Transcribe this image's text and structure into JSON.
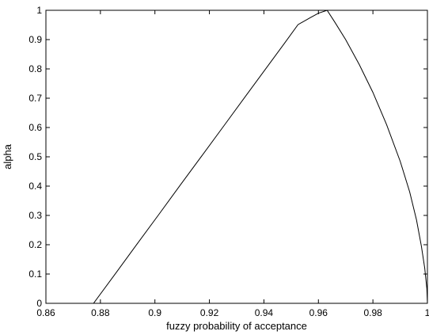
{
  "chart_data": {
    "type": "line",
    "title": "",
    "xlabel": "fuzzy probability of acceptance",
    "ylabel": "alpha",
    "xlim": [
      0.86,
      1.0
    ],
    "ylim": [
      0,
      1
    ],
    "grid": false,
    "xticks": [
      0.86,
      0.88,
      0.9,
      0.92,
      0.94,
      0.96,
      0.98,
      1
    ],
    "xtick_labels": [
      "0.86",
      "0.88",
      "0.9",
      "0.92",
      "0.94",
      "0.96",
      "0.98",
      "1"
    ],
    "yticks": [
      0,
      0.1,
      0.2,
      0.3,
      0.4,
      0.5,
      0.6,
      0.7,
      0.8,
      0.9,
      1
    ],
    "ytick_labels": [
      "0",
      "0.1",
      "0.2",
      "0.3",
      "0.4",
      "0.5",
      "0.6",
      "0.7",
      "0.8",
      "0.9",
      "1"
    ],
    "line_color": "#000000",
    "series": [
      {
        "x": [
          0.8775,
          0.8855,
          0.8935,
          0.9015,
          0.9095,
          0.9175,
          0.9255,
          0.9335,
          0.9415,
          0.9475,
          0.9525,
          0.957,
          0.96,
          0.9632,
          0.966,
          0.97,
          0.975,
          0.98,
          0.985,
          0.99,
          0.9935,
          0.996,
          0.9978,
          0.999,
          0.9998,
          1.0
        ],
        "y": [
          0.0,
          0.101,
          0.203,
          0.304,
          0.406,
          0.507,
          0.608,
          0.71,
          0.811,
          0.887,
          0.951,
          0.975,
          0.99,
          1.0,
          0.96,
          0.9,
          0.815,
          0.72,
          0.61,
          0.485,
          0.38,
          0.285,
          0.195,
          0.12,
          0.05,
          0.0
        ]
      }
    ]
  }
}
